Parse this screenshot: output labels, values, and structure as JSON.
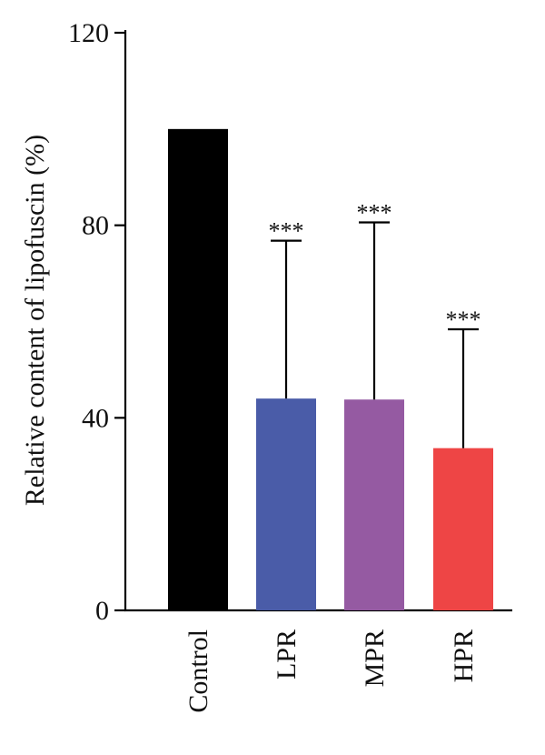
{
  "chart_data": {
    "type": "bar",
    "title": "",
    "xlabel": "",
    "ylabel": "Relative content of lipofuscin (%)",
    "ylim": [
      0,
      120
    ],
    "yticks": [
      0,
      40,
      80,
      120
    ],
    "categories": [
      "Control",
      "LPR",
      "MPR",
      "HPR"
    ],
    "values": [
      100,
      44,
      43.8,
      33.7
    ],
    "error_upper": [
      null,
      76.8,
      80.6,
      58.4
    ],
    "significance": [
      "",
      "***",
      "***",
      "***"
    ],
    "colors": [
      "#000000",
      "#4a5ca8",
      "#955aa2",
      "#ee4545"
    ],
    "grid": false,
    "legend": "none"
  }
}
